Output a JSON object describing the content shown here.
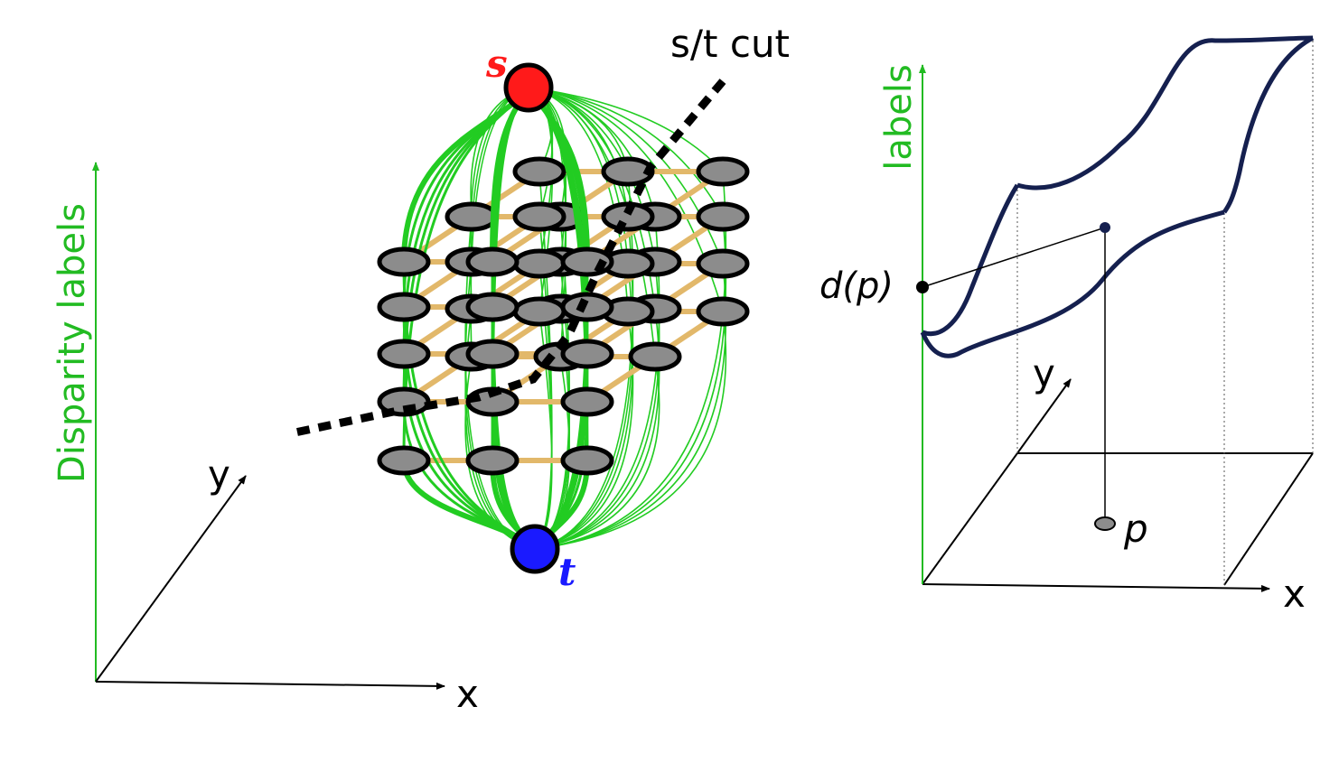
{
  "left": {
    "axis_vertical_label": "Disparity labels",
    "axis_x_label": "x",
    "axis_y_label": "y",
    "source_label": "s",
    "sink_label": "t",
    "cut_label": "s/t cut"
  },
  "right": {
    "axis_vertical_label": "labels",
    "axis_x_label": "x",
    "axis_y_label": "y",
    "point_value_label": "d(p)",
    "pixel_label": "p"
  },
  "colors": {
    "axis_green": "#22bb22",
    "edge_green": "#22cc22",
    "lattice_tan": "#e2b86a",
    "node_gray": "#8c8c8c",
    "source_red": "#ff1a1a",
    "sink_blue": "#1a1aff",
    "surface_navy": "#15204f",
    "cut_black": "#000000"
  }
}
